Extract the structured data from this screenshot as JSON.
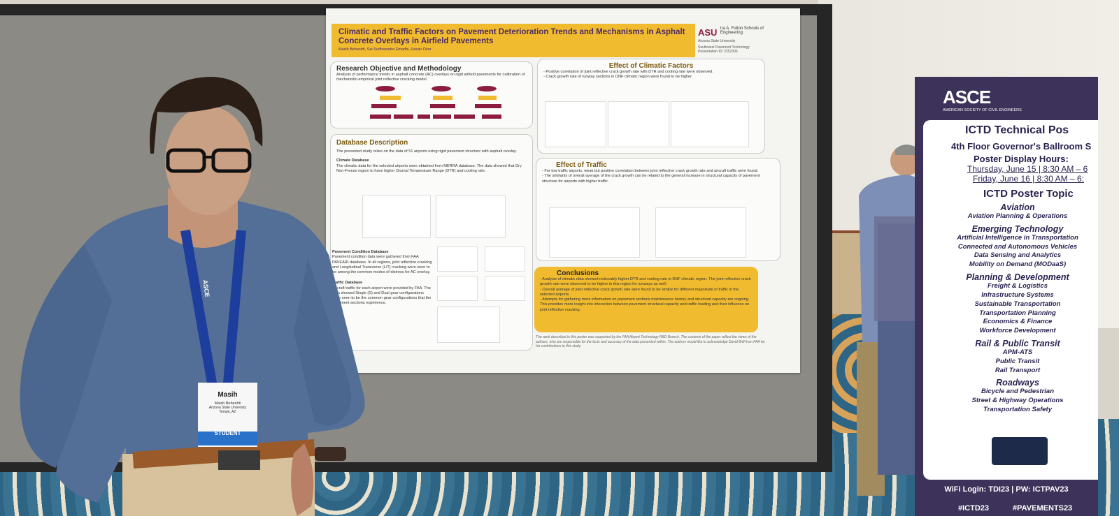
{
  "poster": {
    "title": "Climatic and Traffic Factors on Pavement Deterioration Trends and Mechanisms in Asphalt Concrete Overlays in Airfield Pavements",
    "authors": "Masih Beheshti, Sai Sudheendra Emadhi, Hasan Ozer",
    "logo": {
      "mark": "ASU",
      "school": "Ira A. Fulton Schools of Engineering",
      "university": "Arizona State University",
      "center": "Southwest Pavement Technology",
      "presentation_id": "Presentation ID: 2252306"
    },
    "objective": {
      "heading": "Research Objective and Methodology",
      "text": "Analysis of performance trends in asphalt concrete (AC) overlays on rigid airfield pavements for calibration of mechanistic-empirical joint reflective cracking model."
    },
    "database": {
      "heading": "Database Description",
      "intro": "The presented study relies on the data of 51 airports using rigid pavement structure with asphalt overlay.",
      "climate_heading": "Climate Database",
      "climate_text": "The climatic data for the selected airports were obtained from MERRA database. The data showed that Dry Non-Freeze region to have higher Diurnal Temperature Range (DTR) and cooling rate.",
      "condition_heading": "Pavement Condition Database",
      "condition_text": "Pavement condition data were gathered from FAA PAVEAIR database. In all regions, joint reflective cracking and Longitudinal Transverse (L/T) cracking were seen to be among the common modes of distress for AC overlay.",
      "traffic_heading": "Traffic Database",
      "traffic_text": "Aircraft traffic for each airport were provided by FAA. The data showed Single (S) and Dual gear configurations were seen to be the common gear configurations that the pavement sections experience."
    },
    "climatic": {
      "heading": "Effect of Climatic Factors",
      "bullets": [
        "- Positive correlation of joint reflective crack growth rate with DTR and cooling rate were observed.",
        "- Crack growth rate of runway sections in DNF climatic region were found to be higher."
      ]
    },
    "traffic": {
      "heading": "Effect of Traffic",
      "bullets": [
        "- For low traffic airports, weak but positive correlation between joint reflective crack growth rate and aircraft traffic were found.",
        "- The similarity of overall average of the crack growth can be related to the general increase in structural capacity of pavement structure for airports with higher traffic."
      ]
    },
    "conclusions": {
      "heading": "Conclusions",
      "bullets": [
        "- Analysis of climatic data showed noticeably higher DTR and cooling rate in DNF climatic region. The joint reflective crack growth rate were observed to be higher in this region for runways as well.",
        "- Overall average of joint reflective crack growth rate were found to be similar for different magnitude of traffic in the selected airports.",
        "- Attempts for gathering more information on pavement sections maintenance history and structural capacity are ongoing. This provides more insight into interaction between pavement structural capacity and traffic loading and their influence on joint reflective cracking."
      ]
    },
    "acknowledgment": "The work described in this poster was supported by the FAA Airport Technology R&D Branch. The contents of the paper reflect the views of the authors, who are responsible for the facts and accuracy of the data presented within. The authors would like to acknowledge David Brill from FAA for his contributions to this study."
  },
  "badge": {
    "first_name": "Masih",
    "full_name": "Masih Beheshti",
    "organization": "Arizona State University",
    "location": "Tempe, AZ",
    "role": "STUDENT",
    "lanyard": "ASCE"
  },
  "sign": {
    "org": "ASCE",
    "org_full": "AMERICAN SOCIETY OF CIVIL ENGINEERS",
    "title": "ICTD Technical Pos",
    "location": "4th Floor Governor's Ballroom S",
    "hours_heading": "Poster Display Hours:",
    "hours": [
      "Thursday, June 15 | 8:30 AM – 6",
      "Friday, June 16 | 8:30 AM – 6:"
    ],
    "topics_heading": "ICTD Poster Topic",
    "topics": [
      {
        "heading": "Aviation",
        "items": [
          "Aviation Planning & Operations"
        ]
      },
      {
        "heading": "Emerging Technology",
        "items": [
          "Artificial Intelligence in Transportation",
          "Connected and Autonomous Vehicles",
          "Data Sensing and Analytics",
          "Mobility on Demand (MODaaS)"
        ]
      },
      {
        "heading": "Planning & Development",
        "items": [
          "Freight & Logistics",
          "Infrastructure Systems",
          "Sustainable Transportation",
          "Transportation Planning",
          "Economics & Finance",
          "Workforce Development"
        ]
      },
      {
        "heading": "Rail & Public Transit",
        "items": [
          "APM-ATS",
          "Public Transit",
          "Rail Transport"
        ]
      },
      {
        "heading": "Roadways",
        "items": [
          "Bicycle and Pedestrian",
          "Street & Highway Operations",
          "Transportation Safety"
        ]
      }
    ],
    "wifi": "WiFi Login: TDI23 | PW: ICTPAV23",
    "hashtags": [
      "#ICTD23",
      "#PAVEMENTS23"
    ]
  }
}
